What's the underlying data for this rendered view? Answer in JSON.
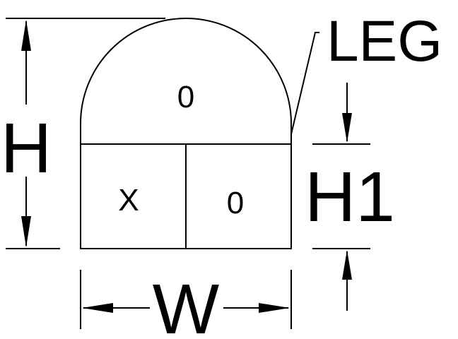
{
  "labels": {
    "height": "H",
    "width": "W",
    "lower_height": "H1",
    "leg": "LEG",
    "top_cell": "0",
    "lower_left_cell": "X",
    "lower_right_cell": "0"
  },
  "colors": {
    "stroke": "#000000",
    "background": "#ffffff"
  }
}
